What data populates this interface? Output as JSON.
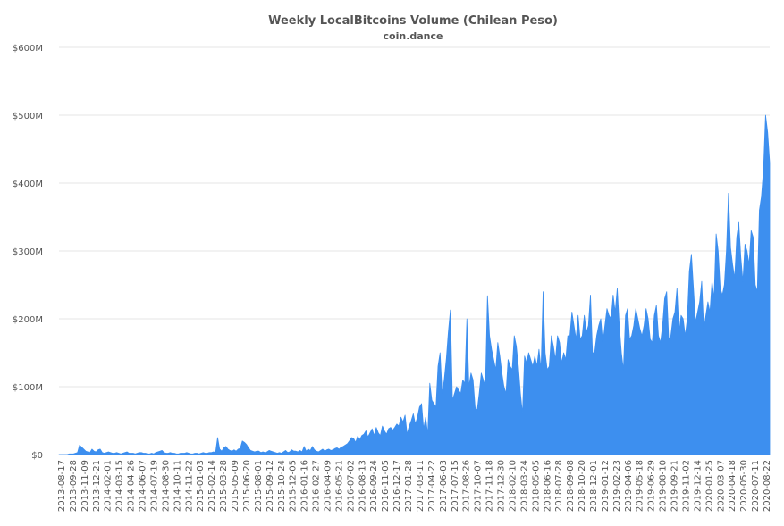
{
  "chart_data": {
    "type": "area",
    "title": "Weekly LocalBitcoins Volume (Chilean Peso)",
    "subtitle": "coin.dance",
    "xlabel": "",
    "ylabel": "",
    "ylim": [
      0,
      600000000
    ],
    "y_ticks": [
      {
        "value": 0,
        "label": "$0"
      },
      {
        "value": 100000000,
        "label": "$100M"
      },
      {
        "value": 200000000,
        "label": "$200M"
      },
      {
        "value": 300000000,
        "label": "$300M"
      },
      {
        "value": 400000000,
        "label": "$400M"
      },
      {
        "value": 500000000,
        "label": "$500M"
      },
      {
        "value": 600000000,
        "label": "$600M"
      }
    ],
    "x_tick_labels": [
      "2013-08-17",
      "2013-09-28",
      "2013-11-09",
      "2013-12-21",
      "2014-02-01",
      "2014-03-15",
      "2014-04-26",
      "2014-06-07",
      "2014-07-19",
      "2014-08-30",
      "2014-10-11",
      "2014-11-22",
      "2015-01-03",
      "2015-02-14",
      "2015-03-28",
      "2015-05-09",
      "2015-06-20",
      "2015-08-01",
      "2015-09-12",
      "2015-10-24",
      "2015-12-05",
      "2016-01-16",
      "2016-02-27",
      "2016-04-09",
      "2016-05-21",
      "2016-07-02",
      "2016-08-13",
      "2016-09-24",
      "2016-11-05",
      "2016-12-17",
      "2017-01-28",
      "2017-03-11",
      "2017-04-22",
      "2017-06-03",
      "2017-07-15",
      "2017-08-26",
      "2017-10-07",
      "2017-11-18",
      "2017-12-30",
      "2018-02-10",
      "2018-03-24",
      "2018-05-05",
      "2018-06-16",
      "2018-07-28",
      "2018-09-08",
      "2018-10-20",
      "2018-12-01",
      "2019-01-12",
      "2019-02-23",
      "2019-04-06",
      "2019-05-18",
      "2019-06-29",
      "2019-08-10",
      "2019-09-21",
      "2019-11-02",
      "2019-12-14",
      "2020-01-25",
      "2020-03-07",
      "2020-04-18",
      "2020-05-30",
      "2020-07-11",
      "2020-08-22"
    ],
    "series": [
      {
        "color": "#3d8fef",
        "start_date": "2013-08-17",
        "interval_days": 7,
        "values_millions": [
          0,
          0,
          0,
          0,
          0,
          1,
          1,
          1,
          2,
          3,
          14,
          11,
          8,
          5,
          4,
          3,
          8,
          5,
          4,
          7,
          8,
          3,
          2,
          3,
          4,
          3,
          2,
          2,
          3,
          2,
          1,
          2,
          3,
          4,
          2,
          2,
          2,
          1,
          2,
          3,
          3,
          2,
          2,
          1,
          1,
          2,
          1,
          3,
          4,
          5,
          6,
          3,
          2,
          2,
          3,
          2,
          2,
          1,
          1,
          2,
          2,
          2,
          3,
          2,
          1,
          1,
          2,
          2,
          1,
          2,
          3,
          2,
          2,
          3,
          3,
          4,
          3,
          25,
          8,
          5,
          10,
          12,
          8,
          6,
          5,
          7,
          5,
          8,
          9,
          20,
          18,
          15,
          10,
          6,
          5,
          4,
          5,
          5,
          3,
          4,
          3,
          4,
          6,
          5,
          4,
          3,
          2,
          3,
          2,
          4,
          6,
          3,
          4,
          7,
          5,
          5,
          4,
          6,
          4,
          12,
          5,
          8,
          6,
          12,
          7,
          5,
          4,
          6,
          8,
          5,
          7,
          8,
          6,
          7,
          9,
          10,
          8,
          11,
          12,
          14,
          16,
          20,
          25,
          24,
          18,
          27,
          22,
          28,
          30,
          35,
          26,
          32,
          38,
          28,
          40,
          32,
          28,
          42,
          35,
          30,
          38,
          40,
          36,
          40,
          45,
          42,
          55,
          48,
          58,
          30,
          42,
          50,
          60,
          45,
          55,
          70,
          75,
          38,
          55,
          30,
          105,
          80,
          75,
          70,
          130,
          150,
          90,
          110,
          140,
          180,
          213,
          80,
          90,
          100,
          95,
          90,
          110,
          105,
          200,
          100,
          120,
          110,
          70,
          65,
          90,
          120,
          110,
          100,
          234,
          175,
          155,
          140,
          125,
          165,
          145,
          120,
          100,
          90,
          140,
          130,
          125,
          175,
          160,
          130,
          90,
          60,
          145,
          135,
          150,
          140,
          130,
          145,
          130,
          155,
          125,
          240,
          150,
          125,
          130,
          175,
          160,
          140,
          175,
          165,
          135,
          150,
          140,
          175,
          175,
          210,
          190,
          170,
          205,
          170,
          175,
          205,
          180,
          190,
          235,
          150,
          150,
          175,
          190,
          200,
          165,
          190,
          215,
          205,
          200,
          235,
          210,
          245,
          190,
          150,
          125,
          205,
          215,
          170,
          175,
          190,
          215,
          200,
          185,
          175,
          190,
          215,
          200,
          170,
          165,
          205,
          220,
          175,
          165,
          190,
          230,
          240,
          170,
          175,
          200,
          210,
          245,
          180,
          205,
          200,
          175,
          200,
          270,
          295,
          245,
          195,
          210,
          225,
          255,
          185,
          205,
          225,
          210,
          255,
          230,
          325,
          300,
          245,
          235,
          250,
          300,
          385,
          305,
          280,
          260,
          320,
          342,
          290,
          255,
          310,
          300,
          280,
          330,
          320,
          250,
          240,
          360,
          380,
          420,
          500,
          475,
          430
        ]
      }
    ]
  }
}
